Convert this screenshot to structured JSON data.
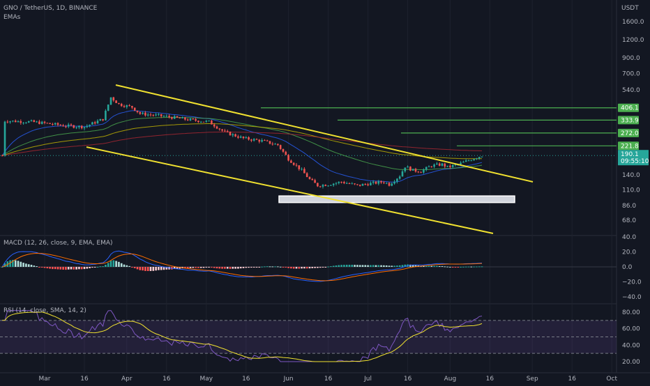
{
  "header": {
    "symbol_line": "GNO / TetherUS, 1D, BINANCE",
    "indicator_label": "EMAs",
    "currency": "USDT"
  },
  "colors": {
    "background": "#131722",
    "up": "#26a69a",
    "down": "#ef5350",
    "trendline": "#f0e130",
    "level_line": "#4caf50",
    "level_label_bg": "#4caf50",
    "last_price_bg": "#26a69a",
    "macd_line": "#2962ff",
    "signal_line": "#ff6d00",
    "rsi_line": "#7e57c2",
    "rsi_ma": "#f0e130",
    "rsi_band": "rgba(126,87,194,0.15)"
  },
  "chart_data": {
    "type": "candlestick",
    "price_axis": {
      "scale": "log",
      "ticks": [
        "1600.0",
        "1200.0",
        "900.0",
        "700.0",
        "540.0",
        "140.0",
        "110.0",
        "86.0",
        "68.0"
      ],
      "tick_values": [
        1600,
        1200,
        900,
        700,
        540,
        140,
        110,
        86,
        68
      ]
    },
    "levels": [
      {
        "label": "406.1",
        "value": 406.1
      },
      {
        "label": "333.9",
        "value": 333.9
      },
      {
        "label": "272.0",
        "value": 272.0
      },
      {
        "label": "221.8",
        "value": 221.8
      }
    ],
    "last_price": {
      "value": "190.1",
      "countdown": "09:55:10"
    },
    "x_axis_labels": [
      "Mar",
      "16",
      "Apr",
      "16",
      "May",
      "16",
      "Jun",
      "16",
      "Jul",
      "16",
      "Aug",
      "16",
      "Sep",
      "16",
      "Oct"
    ],
    "zone_box": {
      "low": 90,
      "high": 100
    },
    "macd": {
      "label": "MACD (12, 26, close, 9, EMA, EMA)",
      "ticks": [
        "40.0",
        "20.0",
        "0.0",
        "−20.0",
        "−40.0"
      ],
      "tick_values": [
        40,
        20,
        0,
        -20,
        -40
      ]
    },
    "rsi": {
      "label": "RSI (14, close, SMA, 14, 2)",
      "ticks": [
        "80.00",
        "60.00",
        "40.00",
        "20.00"
      ],
      "tick_values": [
        80,
        60,
        40,
        20
      ],
      "band": [
        30,
        70
      ]
    }
  }
}
